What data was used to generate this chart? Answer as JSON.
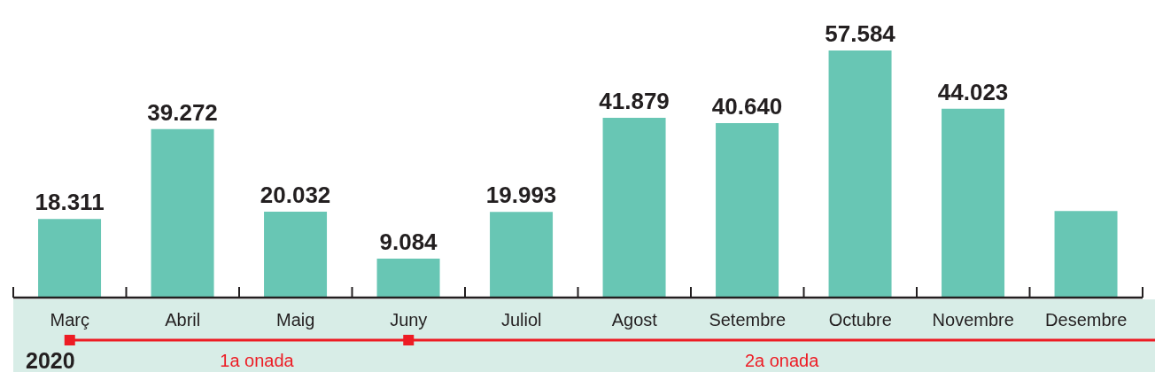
{
  "chart_data": {
    "type": "bar",
    "categories": [
      "Març",
      "Abril",
      "Maig",
      "Juny",
      "Juliol",
      "Agost",
      "Setembre",
      "Octubre",
      "Novembre",
      "Desembre"
    ],
    "values": [
      18311,
      39272,
      20032,
      9084,
      19993,
      41879,
      40640,
      57584,
      44023,
      20200
    ],
    "value_labels": [
      "18.311",
      "39.272",
      "20.032",
      "9.084",
      "19.993",
      "41.879",
      "40.640",
      "57.584",
      "44.023",
      null
    ],
    "color": "#68c6b4",
    "annotations": [
      "2020",
      "1a onada",
      "2a onada"
    ]
  }
}
